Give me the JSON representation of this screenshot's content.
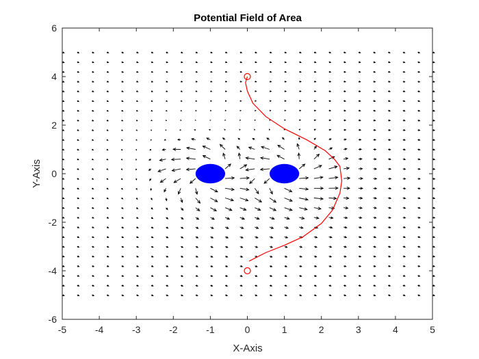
{
  "chart_data": {
    "type": "quiver",
    "title": "Potential Field of Area",
    "xlabel": "X-Axis",
    "ylabel": "Y-Axis",
    "xlim": [
      -5,
      5
    ],
    "ylim": [
      -6,
      6
    ],
    "xticks": [
      -5,
      -4,
      -3,
      -2,
      -1,
      0,
      1,
      2,
      3,
      4,
      5
    ],
    "yticks": [
      -6,
      -4,
      -2,
      0,
      2,
      4,
      6
    ],
    "grid": false,
    "box": true,
    "field": {
      "x_range": [
        -5,
        5
      ],
      "y_range": [
        -5,
        5
      ],
      "step": 0.4,
      "color": "#000000"
    },
    "obstacles": [
      {
        "center": [
          -1,
          0
        ],
        "rx": 0.4,
        "ry": 0.4,
        "color": "#0000ff"
      },
      {
        "center": [
          1,
          0
        ],
        "rx": 0.4,
        "ry": 0.4,
        "color": "#0000ff"
      }
    ],
    "start": {
      "x": 0,
      "y": -4,
      "color": "#ff0000"
    },
    "goal": {
      "x": 0,
      "y": 4,
      "color": "#ff0000"
    },
    "path": {
      "color": "#ff0000",
      "x": [
        0.05,
        0.5,
        1.0,
        1.5,
        2.0,
        2.3,
        2.5,
        2.55,
        2.5,
        2.35,
        2.1,
        1.6,
        1.0,
        0.5,
        0.15,
        0.0,
        -0.05,
        0.0
      ],
      "y": [
        -3.6,
        -3.25,
        -2.95,
        -2.6,
        -2.05,
        -1.5,
        -0.8,
        -0.3,
        0.3,
        0.6,
        0.95,
        1.4,
        1.85,
        2.35,
        2.9,
        3.4,
        3.75,
        4.0
      ]
    }
  }
}
